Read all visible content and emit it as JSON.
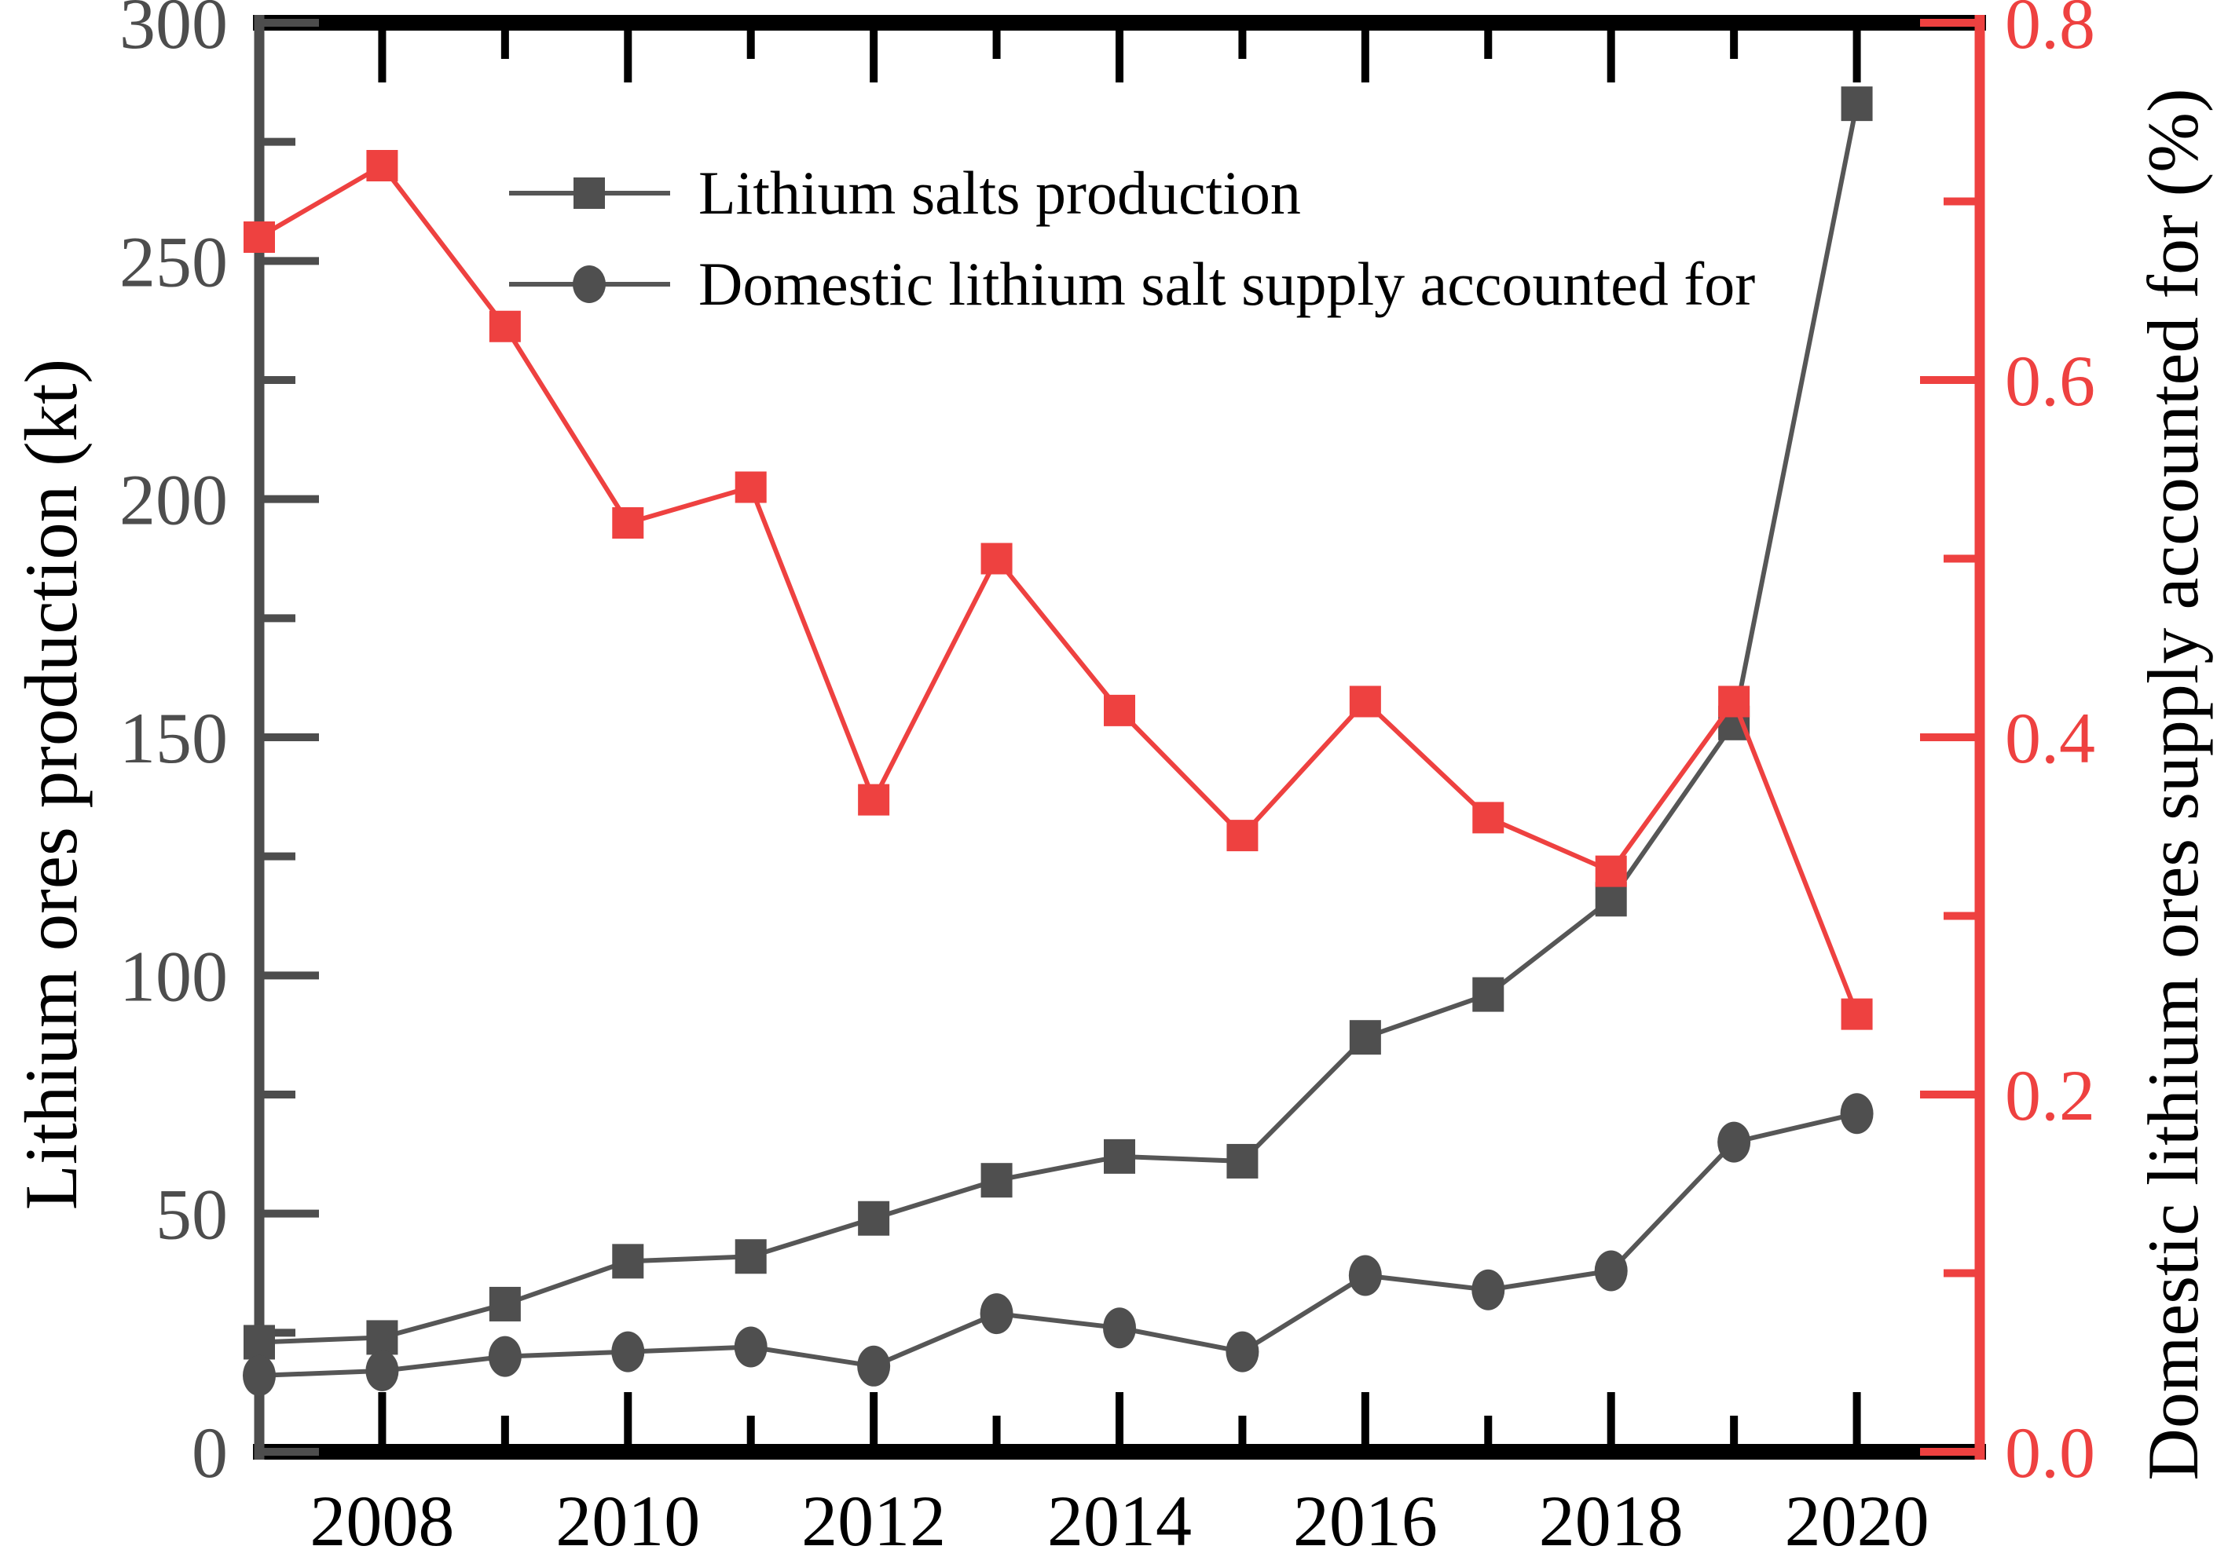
{
  "figure": {
    "background": "#ffffff",
    "colors": {
      "series_gray": "#4f4f4f",
      "line_gray": "#565656",
      "red": "#ee4140",
      "left_tick_label": "#4d4d4d",
      "black": "#000000"
    }
  },
  "legend": {
    "items": [
      {
        "label": "Lithium salts production",
        "marker": "square",
        "marker_color": "#4f4f4f"
      },
      {
        "label": "Domestic lithium salt supply accounted for",
        "marker": "circle",
        "marker_color": "#4f4f4f"
      }
    ]
  },
  "chart_data": {
    "type": "line",
    "x": [
      2007,
      2008,
      2009,
      2010,
      2011,
      2012,
      2013,
      2014,
      2015,
      2016,
      2017,
      2018,
      2019,
      2020
    ],
    "x_range": [
      2007,
      2021
    ],
    "x_major_ticks": [
      2008,
      2010,
      2012,
      2014,
      2016,
      2018,
      2020
    ],
    "x_major_tick_labels": [
      "2008",
      "2010",
      "2012",
      "2014",
      "2016",
      "2018",
      "2020"
    ],
    "x_minor_ticks": [
      2009,
      2011,
      2013,
      2015,
      2017,
      2019,
      2021
    ],
    "grid": "off",
    "legend_position": "upper-left-inside",
    "left_axis": {
      "label": "Lithium ores production (kt)",
      "range": [
        0,
        300
      ],
      "major_ticks": [
        0,
        50,
        100,
        150,
        200,
        250,
        300
      ],
      "tick_labels": [
        "0",
        "50",
        "100",
        "150",
        "200",
        "250",
        "300"
      ],
      "minor_ticks": [
        25,
        75,
        125,
        175,
        225,
        275
      ],
      "axis_color": "#4d4d4d",
      "tick_label_color": "#4d4d4d",
      "title_color": "#000000"
    },
    "right_axis": {
      "label": "Domestic lithium ores supply accounted for (%)",
      "range": [
        0,
        0.8
      ],
      "major_ticks": [
        0.0,
        0.2,
        0.4,
        0.6,
        0.8
      ],
      "tick_labels": [
        "0.0",
        "0.2",
        "0.4",
        "0.6",
        "0.8"
      ],
      "minor_ticks": [
        0.1,
        0.3,
        0.5,
        0.7
      ],
      "axis_color": "#ee4140",
      "tick_label_color": "#ee4140",
      "title_color": "#000000"
    },
    "series": [
      {
        "name": "Lithium salts production",
        "axis": "left",
        "marker": "square",
        "color": "#4f4f4f",
        "line_color": "#565656",
        "values": [
          23,
          24,
          31,
          40,
          41,
          49,
          57,
          62,
          61,
          87,
          96,
          116,
          153,
          283
        ]
      },
      {
        "name": "Domestic lithium salt supply accounted for",
        "axis": "left",
        "marker": "circle",
        "color": "#4f4f4f",
        "line_color": "#565656",
        "values": [
          16,
          17,
          20,
          21,
          22,
          18,
          29,
          26,
          21,
          37,
          34,
          38,
          65,
          71
        ]
      },
      {
        "name": "Domestic lithium ores supply accounted for (%)",
        "axis": "right",
        "marker": "square",
        "color": "#ee4140",
        "line_color": "#ee4140",
        "values": [
          0.68,
          0.72,
          0.63,
          0.52,
          0.54,
          0.365,
          0.5,
          0.415,
          0.345,
          0.42,
          0.355,
          0.325,
          0.42,
          0.245
        ]
      }
    ]
  }
}
